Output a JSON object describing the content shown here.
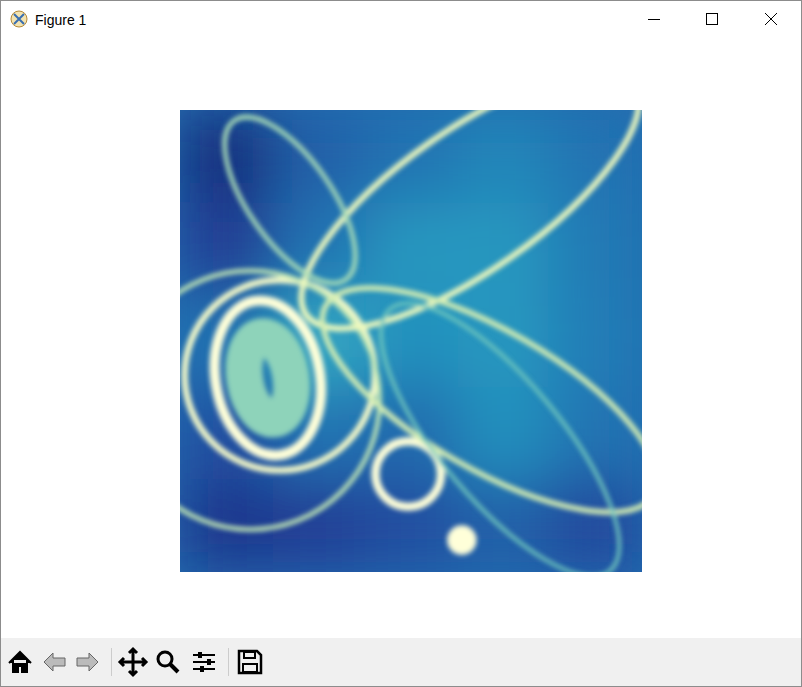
{
  "window": {
    "title": "Figure 1"
  },
  "chart_data": {
    "type": "image",
    "xlim": [
      0,
      100
    ],
    "ylim": [
      100,
      0
    ],
    "tick_labels": false,
    "color": "YlGnBu_r",
    "color_range": [
      0,
      1
    ],
    "cells": {
      "x_edges": [
        0,
        20,
        40,
        60,
        80,
        100
      ],
      "y_edges": [
        0,
        20,
        40,
        60,
        80,
        100
      ],
      "values": [
        [
          0.08,
          0.25,
          0.3,
          0.35,
          0.3
        ],
        [
          0.15,
          0.3,
          0.4,
          0.4,
          0.32
        ],
        [
          0.3,
          0.45,
          0.38,
          0.4,
          0.33
        ],
        [
          0.2,
          0.3,
          0.28,
          0.38,
          0.3
        ],
        [
          0.12,
          0.15,
          0.2,
          0.25,
          0.18
        ]
      ]
    },
    "rings": [
      {
        "x": 61,
        "y": 93.1,
        "rx": 1.6,
        "ry": 1.6,
        "angle": 0,
        "width": 3.2,
        "value": 1
      },
      {
        "x": 49.4,
        "y": 78.8,
        "rx": 7.1,
        "ry": 7.1,
        "angle": 0,
        "width": 1.8,
        "value": 1
      },
      {
        "x": 19,
        "y": 58,
        "rx": 11.3,
        "ry": 16.9,
        "angle": -10,
        "width": 2.2,
        "value": 1
      },
      {
        "x": 19,
        "y": 58,
        "rx": 5,
        "ry": 9,
        "angle": -10,
        "width": 8,
        "value": 0.65
      },
      {
        "x": 21.6,
        "y": 57.4,
        "rx": 20.6,
        "ry": 20.6,
        "angle": 0,
        "width": 1.4,
        "value": 0.95
      },
      {
        "x": 15.2,
        "y": 62.8,
        "rx": 28,
        "ry": 28,
        "angle": 0,
        "width": 1,
        "value": 0.75
      },
      {
        "x": 62.8,
        "y": 19.5,
        "rx": 43.3,
        "ry": 15.2,
        "angle": -35,
        "width": 1.3,
        "value": 0.9
      },
      {
        "x": 23.8,
        "y": 19.5,
        "rx": 21,
        "ry": 9,
        "angle": 55,
        "width": 1,
        "value": 0.7
      },
      {
        "x": 67.1,
        "y": 62.8,
        "rx": 41,
        "ry": 15,
        "angle": 30,
        "width": 1.2,
        "value": 0.8
      },
      {
        "x": 69.3,
        "y": 71.4,
        "rx": 37,
        "ry": 13,
        "angle": 50,
        "width": 0.8,
        "value": 0.6
      }
    ]
  }
}
